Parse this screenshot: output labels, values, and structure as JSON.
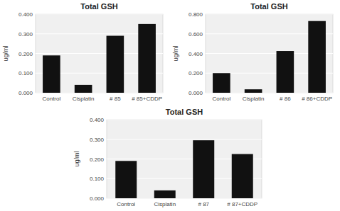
{
  "chart_data": [
    {
      "type": "bar",
      "title": "Total GSH",
      "categories": [
        "Control",
        "Cisplatin",
        "# 85",
        "# 85+CDDP"
      ],
      "values": [
        0.19,
        0.04,
        0.29,
        0.35
      ],
      "color": "#111111",
      "ylim": [
        0,
        0.4
      ],
      "yticks": [
        {
          "value": 0.0,
          "label": "0.000"
        },
        {
          "value": 0.1,
          "label": "0.100"
        },
        {
          "value": 0.2,
          "label": "0.200"
        },
        {
          "value": 0.3,
          "label": "0.300"
        },
        {
          "value": 0.4,
          "label": "0.400"
        }
      ],
      "ylabel": "ug/ml",
      "grid": true
    },
    {
      "type": "bar",
      "title": "Total GSH",
      "categories": [
        "Control",
        "Cisplatin",
        "# 86",
        "# 86+CDDP"
      ],
      "values": [
        0.2,
        0.035,
        0.425,
        0.73
      ],
      "color": "#111111",
      "ylim": [
        0,
        0.8
      ],
      "yticks": [
        {
          "value": 0.0,
          "label": "0.000"
        },
        {
          "value": 0.2,
          "label": "0.200"
        },
        {
          "value": 0.4,
          "label": "0.400"
        },
        {
          "value": 0.6,
          "label": "0.600"
        },
        {
          "value": 0.8,
          "label": "0.800"
        }
      ],
      "ylabel": "ug/ml",
      "grid": true
    },
    {
      "type": "bar",
      "title": "Total GSH",
      "categories": [
        "Control",
        "Cisplatin",
        "# 87",
        "# 87+CDDP"
      ],
      "values": [
        0.19,
        0.04,
        0.295,
        0.225
      ],
      "color": "#111111",
      "ylim": [
        0,
        0.4
      ],
      "yticks": [
        {
          "value": 0.0,
          "label": "0.000"
        },
        {
          "value": 0.1,
          "label": "0.100"
        },
        {
          "value": 0.2,
          "label": "0.200"
        },
        {
          "value": 0.3,
          "label": "0.300"
        },
        {
          "value": 0.4,
          "label": "0.400"
        }
      ],
      "ylabel": "ug/ml",
      "grid": true
    }
  ]
}
